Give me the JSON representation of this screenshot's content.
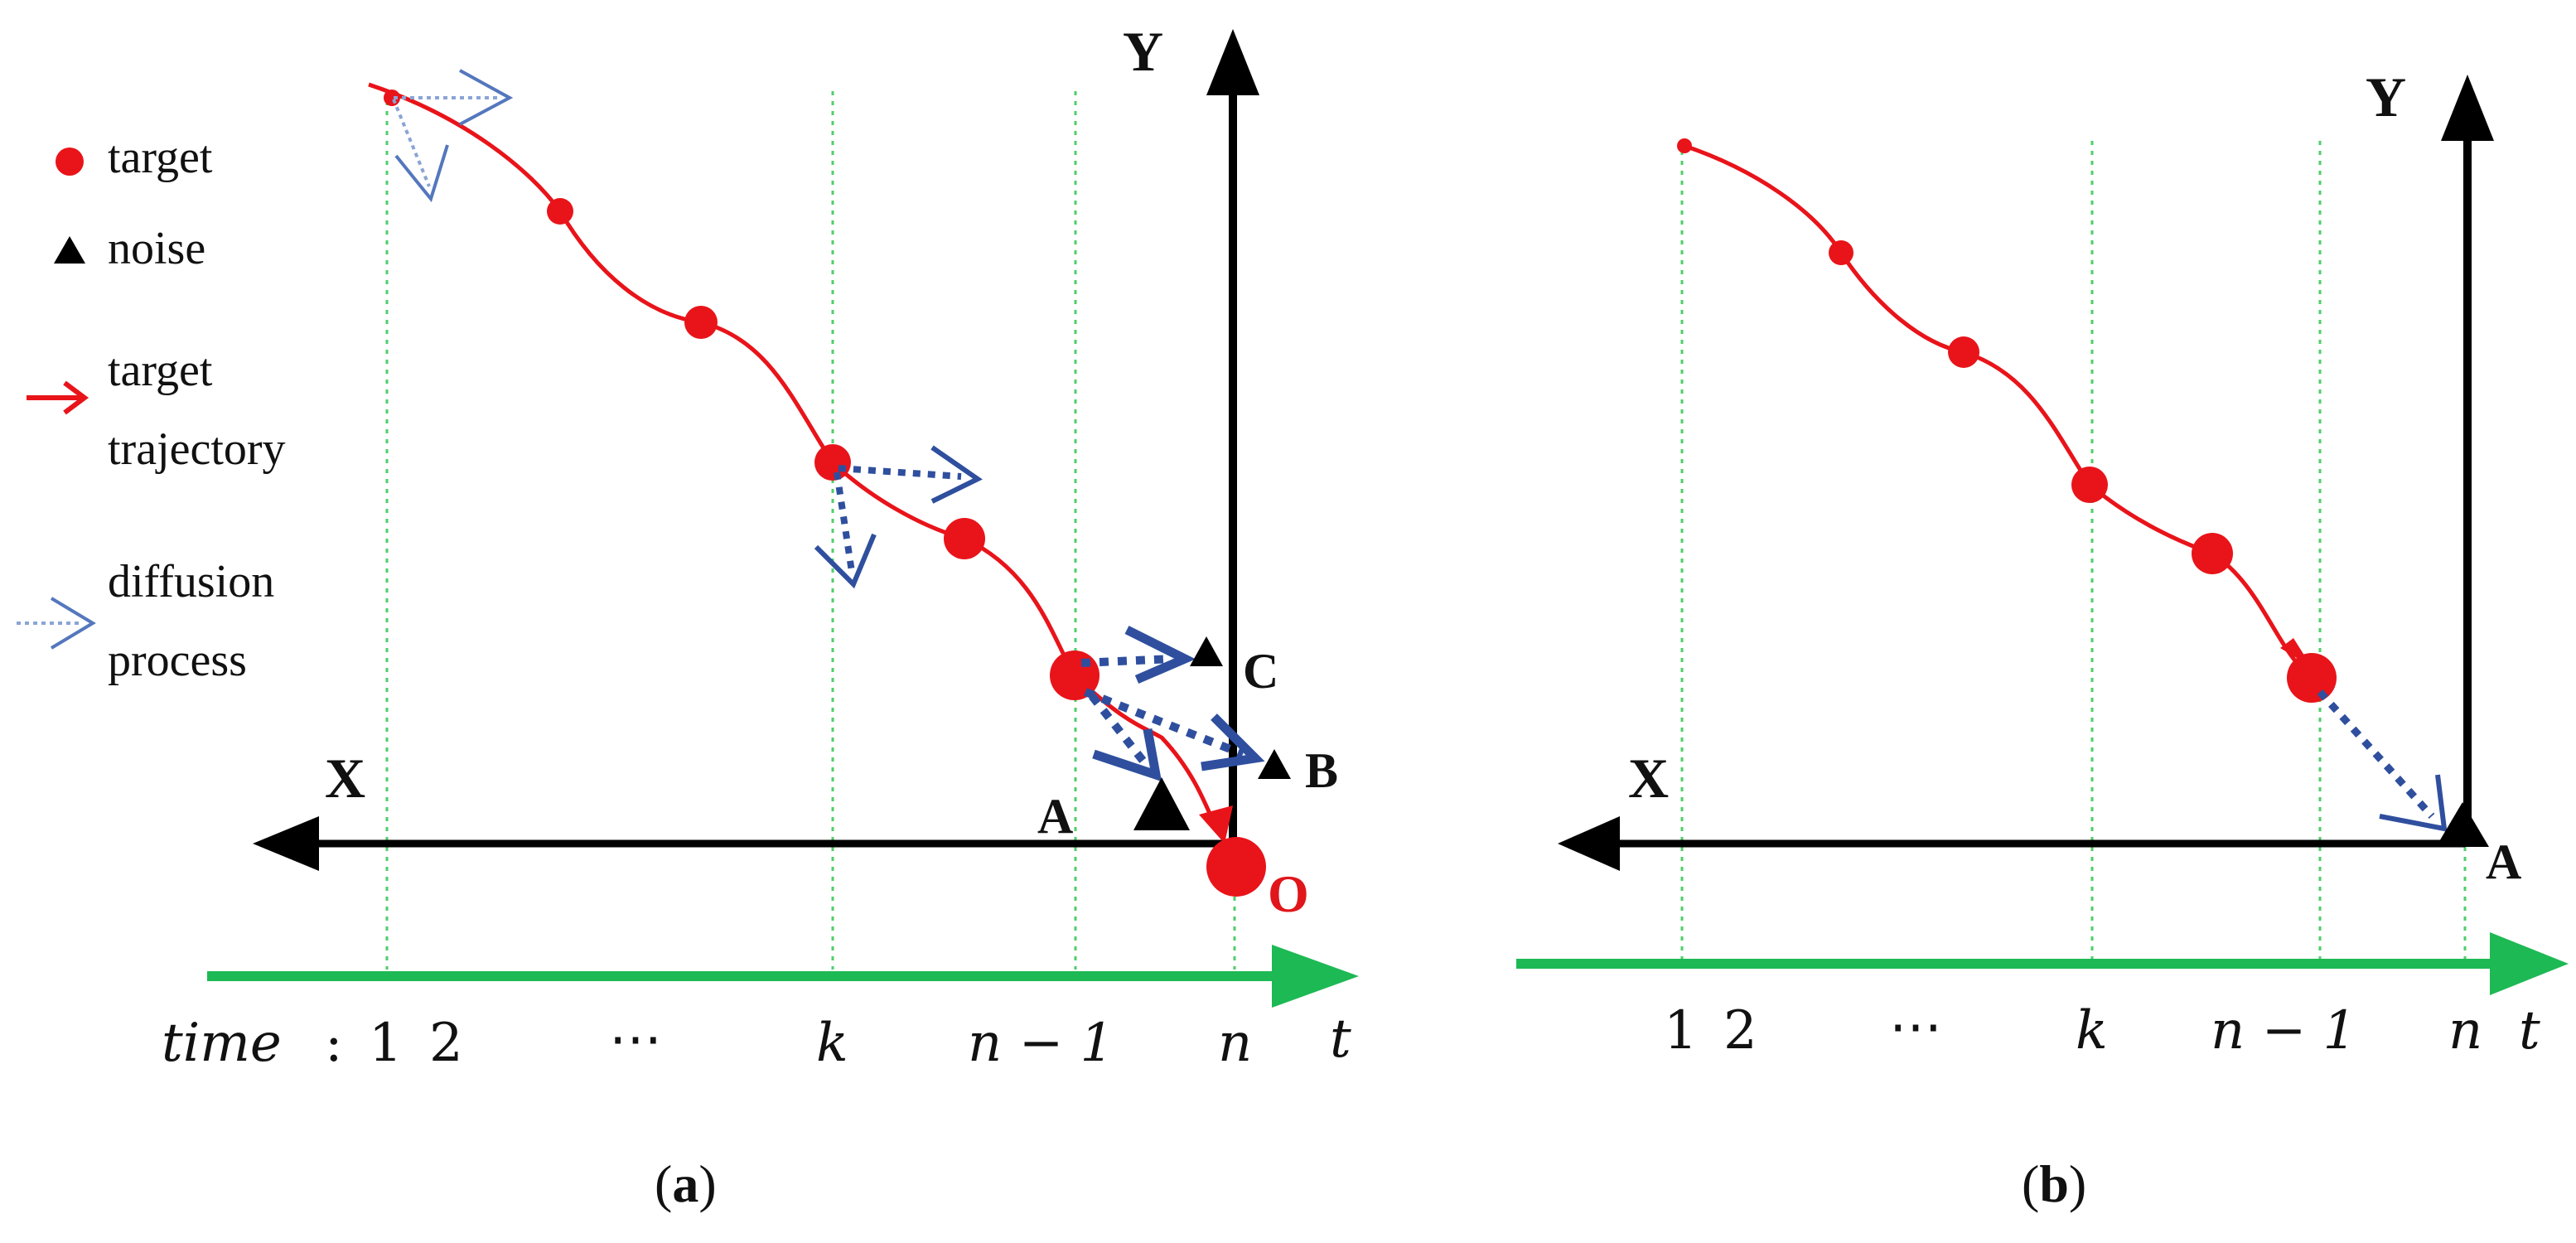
{
  "legend": {
    "target": "target",
    "noise": "noise",
    "trajectory_line1": "target",
    "trajectory_line2": "trajectory",
    "diffusion_line1": "diffusion",
    "diffusion_line2": "process"
  },
  "colors": {
    "target": "#e8141a",
    "noise": "#000000",
    "diffusion": "#2f4f9e",
    "time_axis": "#1db954",
    "gridline": "#4fce6a"
  },
  "panel_a": {
    "x_axis_label": "X",
    "y_axis_label": "Y",
    "origin_label": "O",
    "point_a": "A",
    "point_b": "B",
    "point_c": "C",
    "time_prefix": "time",
    "time_colon": ":",
    "ticks": [
      "1",
      "2",
      "⋯",
      "k",
      "n − 1",
      "n"
    ],
    "time_arrow_label": "t",
    "caption_open": "(",
    "caption_letter": "a",
    "caption_close": ")"
  },
  "panel_b": {
    "x_axis_label": "X",
    "y_axis_label": "Y",
    "point_a": "A",
    "ticks": [
      "1",
      "2",
      "⋯",
      "k",
      "n − 1",
      "n"
    ],
    "time_arrow_label": "t",
    "caption_open": "(",
    "caption_letter": "b",
    "caption_close": ")"
  }
}
